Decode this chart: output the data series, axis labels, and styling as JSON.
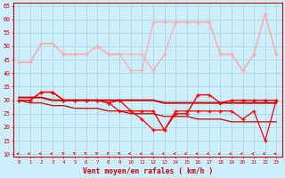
{
  "x": [
    0,
    1,
    2,
    3,
    4,
    5,
    6,
    7,
    8,
    9,
    10,
    11,
    12,
    13,
    14,
    15,
    16,
    17,
    18,
    19,
    20,
    21,
    22,
    23
  ],
  "line_gust_max": [
    44,
    44,
    51,
    51,
    47,
    47,
    47,
    50,
    47,
    47,
    47,
    47,
    41,
    47,
    59,
    59,
    59,
    59,
    47,
    47,
    41,
    47,
    62,
    47
  ],
  "line_gust_upper": [
    44,
    44,
    51,
    51,
    47,
    47,
    47,
    50,
    47,
    47,
    41,
    41,
    59,
    59,
    59,
    59,
    59,
    59,
    47,
    47,
    41,
    47,
    62,
    47
  ],
  "line_mean_upper": [
    30,
    30,
    33,
    33,
    30,
    30,
    30,
    30,
    29,
    30,
    26,
    26,
    26,
    19,
    25,
    25,
    32,
    32,
    29,
    30,
    30,
    30,
    30,
    30
  ],
  "line_mean_lower": [
    30,
    30,
    33,
    33,
    30,
    30,
    30,
    30,
    29,
    26,
    26,
    23,
    19,
    19,
    26,
    26,
    26,
    26,
    26,
    26,
    23,
    26,
    15,
    30
  ],
  "trend_upper": [
    31,
    31,
    31,
    30,
    30,
    30,
    30,
    30,
    30,
    30,
    30,
    30,
    30,
    29,
    29,
    29,
    29,
    29,
    29,
    29,
    29,
    29,
    29,
    29
  ],
  "trend_lower": [
    30,
    29,
    29,
    28,
    28,
    27,
    27,
    27,
    26,
    26,
    25,
    25,
    25,
    24,
    24,
    24,
    23,
    23,
    23,
    22,
    22,
    22,
    22,
    22
  ],
  "arrows_deg": [
    270,
    270,
    270,
    270,
    225,
    225,
    225,
    225,
    225,
    225,
    270,
    270,
    270,
    270,
    270,
    270,
    270,
    270,
    270,
    270,
    270,
    270,
    270,
    270
  ],
  "bg_color": "#cceeff",
  "grid_color": "#aadddd",
  "line_gust_color": "#ffaaaa",
  "line_mean_color": "#ff0000",
  "trend_color": "#cc0000",
  "arrow_color": "#ff0000",
  "xlabel": "Vent moyen/en rafales ( km/h )",
  "yticks": [
    10,
    15,
    20,
    25,
    30,
    35,
    40,
    45,
    50,
    55,
    60,
    65
  ],
  "ylim": [
    9,
    66
  ],
  "xlim": [
    -0.5,
    23.5
  ]
}
